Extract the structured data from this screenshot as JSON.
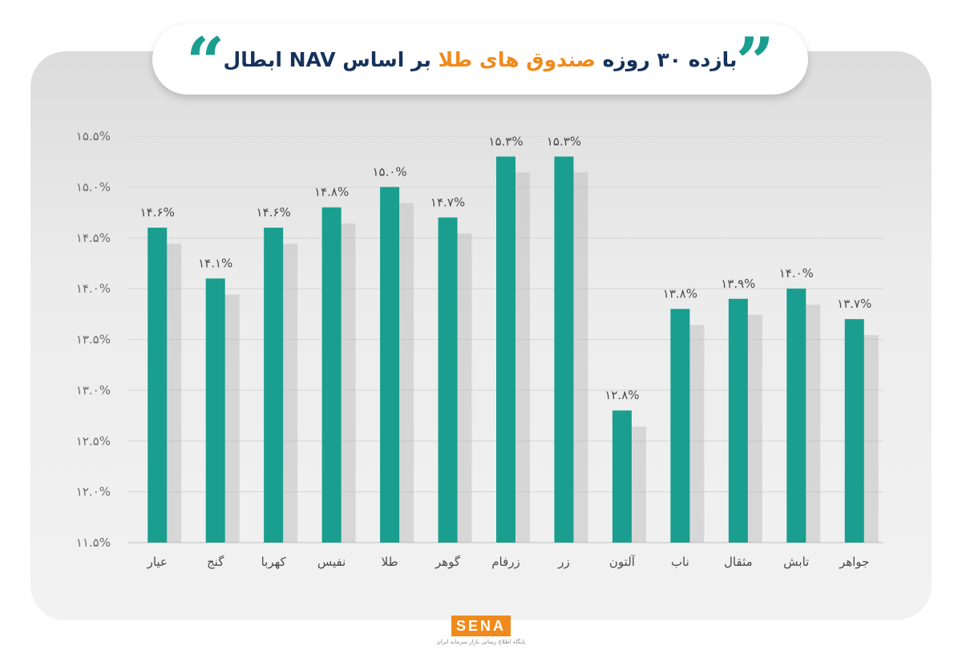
{
  "title": {
    "part1": "بازده ۳۰ روزه",
    "part2": "صندوق های طلا",
    "part3": "بر اساس NAV ابطال"
  },
  "brand": {
    "logo_text": "SENA",
    "tagline": "پایگاه اطلاع رسانی بازار سرمایه ایران"
  },
  "colors": {
    "bar": "#1a9e8f",
    "shadow": "#b9b9b9",
    "title_text": "#16325c",
    "title_highlight": "#f08a1c"
  },
  "chart_data": {
    "type": "bar",
    "categories": [
      "عیار",
      "گنج",
      "کهربا",
      "نفیس",
      "طلا",
      "گوهر",
      "زرفام",
      "زر",
      "آلتون",
      "ناب",
      "مثقال",
      "تابش",
      "جواهر"
    ],
    "values": [
      14.6,
      14.1,
      14.6,
      14.8,
      15.0,
      14.7,
      15.3,
      15.3,
      12.8,
      13.8,
      13.9,
      14.0,
      13.7
    ],
    "data_labels": [
      "۱۴.۶%",
      "۱۴.۱%",
      "۱۴.۶%",
      "۱۴.۸%",
      "۱۵.۰%",
      "۱۴.۷%",
      "۱۵.۳%",
      "۱۵.۳%",
      "۱۲.۸%",
      "۱۳.۸%",
      "۱۳.۹%",
      "۱۴.۰%",
      "۱۳.۷%"
    ],
    "ylim": [
      11.5,
      15.5
    ],
    "yticks": [
      11.5,
      12.0,
      12.5,
      13.0,
      13.5,
      14.0,
      14.5,
      15.0,
      15.5
    ],
    "ytick_labels": [
      "۱۱.۵%",
      "۱۲.۰%",
      "۱۲.۵%",
      "۱۳.۰%",
      "۱۳.۵%",
      "۱۴.۰%",
      "۱۴.۵%",
      "۱۵.۰%",
      "۱۵.۵%"
    ],
    "grid": true,
    "legend": "none"
  }
}
